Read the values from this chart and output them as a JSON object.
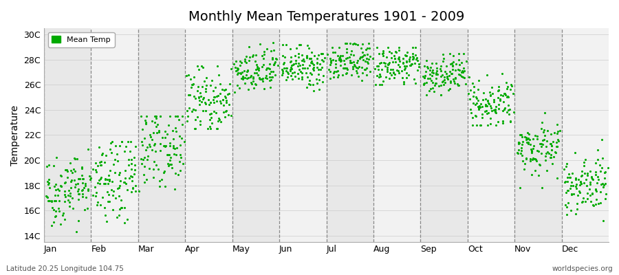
{
  "title": "Monthly Mean Temperatures 1901 - 2009",
  "ylabel": "Temperature",
  "bottom_left_text": "Latitude 20.25 Longitude 104.75",
  "bottom_right_text": "worldspecies.org",
  "legend_label": "Mean Temp",
  "dot_color": "#00AA00",
  "dot_size": 5,
  "background_color": "#FFFFFF",
  "band_color_odd": "#E8E8E8",
  "band_color_even": "#F2F2F2",
  "ylim": [
    13.5,
    30.5
  ],
  "yticks": [
    14,
    16,
    18,
    20,
    22,
    24,
    26,
    28,
    30
  ],
  "ytick_labels": [
    "14C",
    "16C",
    "18C",
    "20C",
    "22C",
    "24C",
    "26C",
    "28C",
    "30C"
  ],
  "months": [
    "Jan",
    "Feb",
    "Mar",
    "Apr",
    "May",
    "Jun",
    "Jul",
    "Aug",
    "Sep",
    "Oct",
    "Nov",
    "Dec"
  ],
  "monthly_mean": [
    17.8,
    18.3,
    21.2,
    24.8,
    27.0,
    27.4,
    27.9,
    27.6,
    26.8,
    24.5,
    21.0,
    18.2
  ],
  "monthly_std": [
    1.4,
    1.7,
    1.6,
    1.4,
    0.9,
    0.85,
    0.8,
    0.8,
    0.8,
    0.85,
    1.1,
    1.2
  ],
  "monthly_min": [
    14.0,
    14.2,
    15.0,
    22.5,
    24.8,
    25.5,
    26.2,
    26.0,
    25.2,
    22.8,
    17.8,
    15.2
  ],
  "monthly_max": [
    21.2,
    21.5,
    23.5,
    27.5,
    29.5,
    29.2,
    29.3,
    29.0,
    28.5,
    27.0,
    23.8,
    21.8
  ],
  "monthly_trend": [
    0.008,
    0.006,
    0.005,
    0.003,
    0.002,
    0.001,
    0.001,
    0.001,
    0.001,
    0.003,
    0.005,
    0.007
  ],
  "n_years": 109,
  "seed": 42
}
